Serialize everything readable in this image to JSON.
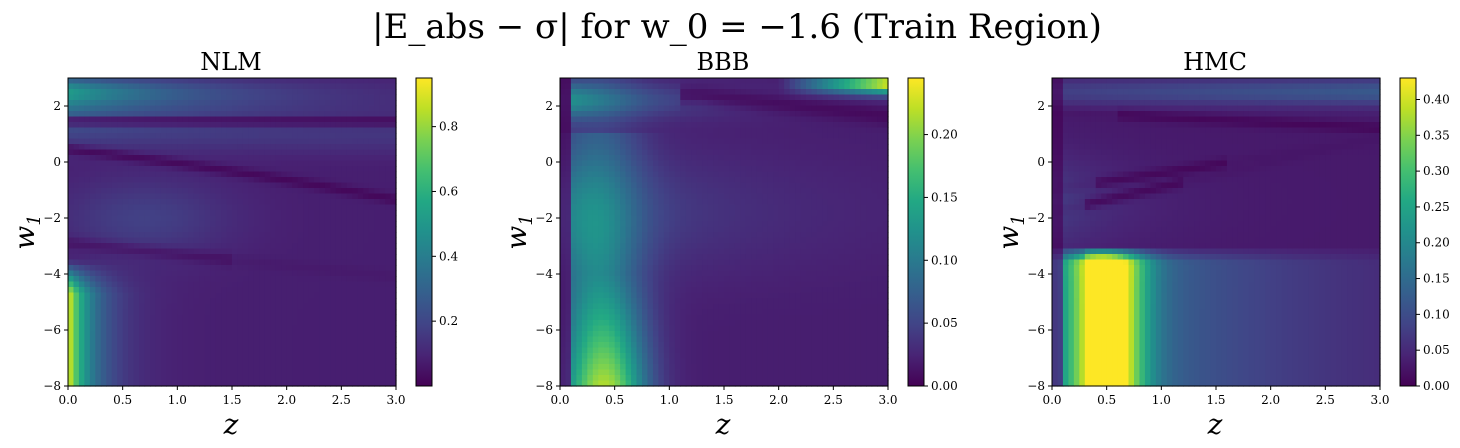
{
  "figure": {
    "title": "|E_abs − σ| for w_0 = −1.6 (Train Region)"
  },
  "chart_data": [
    {
      "type": "heatmap",
      "title": "NLM",
      "xlabel": "z",
      "ylabel": "w_1",
      "xlim": [
        0.0,
        3.0
      ],
      "ylim": [
        -8,
        3
      ],
      "xticks": [
        "0.0",
        "0.5",
        "1.0",
        "1.5",
        "2.0",
        "2.5",
        "3.0"
      ],
      "yticks": [
        "−8",
        "−6",
        "−4",
        "−2",
        "0",
        "2"
      ],
      "colorbar": {
        "min": 0.0,
        "max": 0.95,
        "ticks": [
          "0.2",
          "0.4",
          "0.6",
          "0.8"
        ],
        "tick_values": [
          0.2,
          0.4,
          0.6,
          0.8
        ]
      },
      "colormap": "viridis",
      "features": [
        "bright band near w1=2.4 at low z",
        "dark curve at w1≈1.5",
        "dark curve from w1≈0.5 bending right",
        "blob near z≈0.6, w1≈-2",
        "hot region z<0.3, w1<-4 up to ~0.95"
      ]
    },
    {
      "type": "heatmap",
      "title": "BBB",
      "xlabel": "z",
      "ylabel": "w_1",
      "xlim": [
        0.0,
        3.0
      ],
      "ylim": [
        -8,
        3
      ],
      "xticks": [
        "0.0",
        "0.5",
        "1.0",
        "1.5",
        "2.0",
        "2.5",
        "3.0"
      ],
      "yticks": [
        "−8",
        "−6",
        "−4",
        "−2",
        "0",
        "2"
      ],
      "colorbar": {
        "min": 0.0,
        "max": 0.245,
        "ticks": [
          "0.00",
          "0.05",
          "0.10",
          "0.15",
          "0.20"
        ],
        "tick_values": [
          0.0,
          0.05,
          0.1,
          0.15,
          0.2
        ]
      },
      "colormap": "viridis",
      "features": [
        "band at w1≈2.2 for z<1",
        "vertical ridge near z≈0.4 rising toward w1=-8",
        "bright corner at top right up to ~0.24"
      ]
    },
    {
      "type": "heatmap",
      "title": "HMC",
      "xlabel": "z",
      "ylabel": "w_1",
      "xlim": [
        0.0,
        3.0
      ],
      "ylim": [
        -8,
        3
      ],
      "xticks": [
        "0.0",
        "0.5",
        "1.0",
        "1.5",
        "2.0",
        "2.5",
        "3.0"
      ],
      "yticks": [
        "−8",
        "−6",
        "−4",
        "−2",
        "0",
        "2"
      ],
      "colorbar": {
        "min": 0.0,
        "max": 0.43,
        "ticks": [
          "0.00",
          "0.05",
          "0.10",
          "0.15",
          "0.20",
          "0.25",
          "0.30",
          "0.35",
          "0.40"
        ],
        "tick_values": [
          0.0,
          0.05,
          0.1,
          0.15,
          0.2,
          0.25,
          0.3,
          0.35,
          0.4
        ]
      },
      "colormap": "viridis",
      "features": [
        "upper band w1≈2.5 brighter at right",
        "branching dark curves from w1≈-1",
        "bright block below w1≈-3 peaking near z≈0.5 up to ~0.43"
      ]
    }
  ]
}
